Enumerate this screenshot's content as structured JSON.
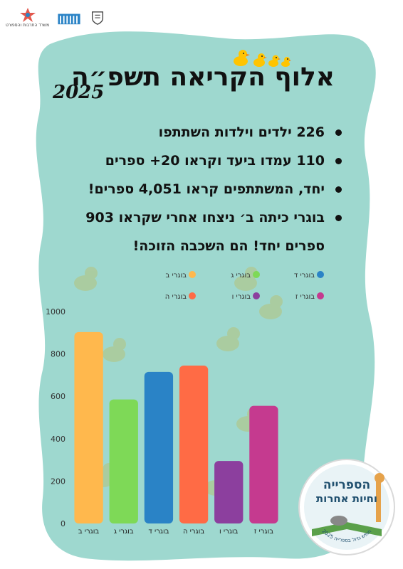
{
  "header": {
    "logos": [
      {
        "name": "ministry-logo",
        "text": "משרד התרבות והספורט"
      },
      {
        "name": "library-logo",
        "text": ""
      },
      {
        "name": "municipality-logo",
        "text": ""
      }
    ]
  },
  "poster": {
    "title": "אלוף הקריאה תשפ״ה",
    "year": "2025",
    "bullets": [
      "226 ילדים וילדות השתתפו",
      "110 עמדו ביעד וקראו 20+ ספרים",
      "יחד, המשתתפים קראו  4,051 ספרים!",
      "בוגרי כיתה ב׳ ניצחו אחרי שקראו 903"
    ],
    "bullet_continuation": "ספרים יחד! הם השכבה הזוכה!"
  },
  "badge": {
    "title_line1": "הספרייה",
    "title_line2": "וחיות אחרות",
    "ring_text": "חופש גדול בספרייה 2025"
  },
  "colors": {
    "background_blob": "#9ed8cf",
    "text": "#111111"
  },
  "chart_data": {
    "type": "bar",
    "categories": [
      "בוגרי ב",
      "בוגרי ג",
      "בוגרי ד",
      "בוגרי ה",
      "בוגרי ו",
      "בוגרי ז"
    ],
    "values": [
      903,
      585,
      715,
      745,
      295,
      555
    ],
    "colors": [
      "#ffb84d",
      "#7ed957",
      "#2a83c6",
      "#ff6b45",
      "#8c3f9e",
      "#c53a8f"
    ],
    "ylim": [
      0,
      1000
    ],
    "yticks": [
      0,
      200,
      400,
      600,
      800,
      1000
    ],
    "legend": [
      "בוגרי ב",
      "בוגרי ג",
      "בוגרי ד",
      "בוגרי ה",
      "בוגרי ו",
      "בוגרי ז"
    ],
    "legend_placement": "top",
    "grid": false
  }
}
